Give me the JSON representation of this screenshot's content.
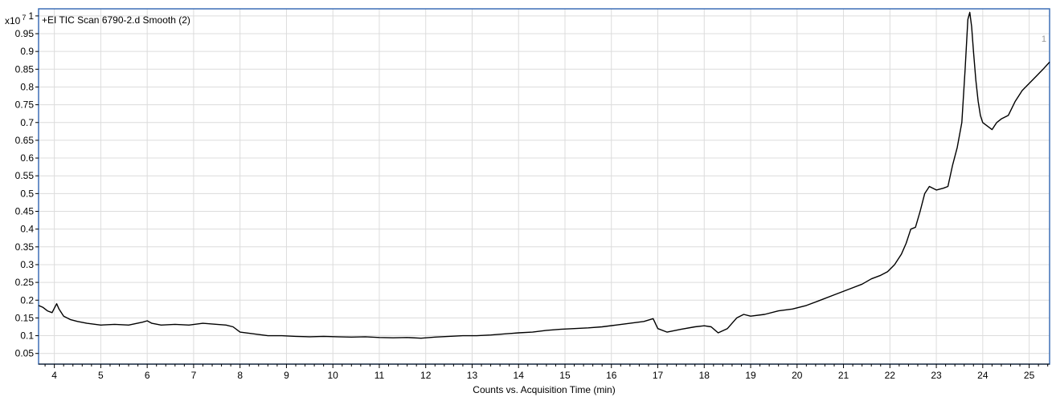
{
  "chart_data": {
    "type": "line",
    "title": "+EI TIC Scan 6790-2.d  Smooth (2)",
    "xlabel": "Counts vs. Acquisition Time (min)",
    "y_multiplier_base": "x10",
    "y_multiplier_exp": "7",
    "panel_number": "1",
    "xlim": [
      3.66,
      25.44
    ],
    "ylim": [
      0.02,
      1.02
    ],
    "x_ticks": [
      4,
      5,
      6,
      7,
      8,
      9,
      10,
      11,
      12,
      13,
      14,
      15,
      16,
      17,
      18,
      19,
      20,
      21,
      22,
      23,
      24,
      25
    ],
    "y_ticks": [
      0.05,
      0.1,
      0.15,
      0.2,
      0.25,
      0.3,
      0.35,
      0.4,
      0.45,
      0.5,
      0.55,
      0.6,
      0.65,
      0.7,
      0.75,
      0.8,
      0.85,
      0.9,
      0.95,
      1
    ],
    "y_tick_labels": [
      "0.05",
      "0.1",
      "0.15",
      "0.2",
      "0.25",
      "0.3",
      "0.35",
      "0.4",
      "0.45",
      "0.5",
      "0.55",
      "0.6",
      "0.65",
      "0.7",
      "0.75",
      "0.8",
      "0.85",
      "0.9",
      "0.95",
      "1"
    ],
    "grid": true,
    "series": [
      {
        "color": "#000000",
        "x": [
          3.66,
          3.75,
          3.85,
          3.95,
          4.05,
          4.1,
          4.2,
          4.35,
          4.5,
          4.7,
          5.0,
          5.3,
          5.6,
          5.9,
          6.0,
          6.1,
          6.3,
          6.6,
          6.9,
          7.2,
          7.5,
          7.7,
          7.85,
          8.0,
          8.3,
          8.6,
          8.9,
          9.2,
          9.5,
          9.8,
          10.1,
          10.4,
          10.7,
          11.0,
          11.3,
          11.6,
          11.9,
          12.2,
          12.5,
          12.8,
          13.1,
          13.4,
          13.7,
          14.0,
          14.3,
          14.6,
          14.9,
          15.2,
          15.5,
          15.8,
          16.1,
          16.4,
          16.7,
          16.9,
          17.0,
          17.2,
          17.5,
          17.8,
          18.0,
          18.15,
          18.3,
          18.5,
          18.7,
          18.85,
          19.0,
          19.3,
          19.6,
          19.9,
          20.2,
          20.5,
          20.8,
          21.1,
          21.4,
          21.6,
          21.8,
          21.95,
          22.1,
          22.25,
          22.35,
          22.45,
          22.55,
          22.65,
          22.75,
          22.85,
          23.0,
          23.15,
          23.25,
          23.35,
          23.45,
          23.55,
          23.62,
          23.68,
          23.72,
          23.76,
          23.8,
          23.85,
          23.9,
          23.95,
          24.0,
          24.1,
          24.2,
          24.3,
          24.4,
          24.55,
          24.7,
          24.85,
          25.0,
          25.15,
          25.3,
          25.44
        ],
        "y": [
          0.185,
          0.18,
          0.17,
          0.165,
          0.19,
          0.175,
          0.155,
          0.145,
          0.14,
          0.135,
          0.13,
          0.132,
          0.13,
          0.138,
          0.142,
          0.135,
          0.13,
          0.132,
          0.13,
          0.135,
          0.132,
          0.13,
          0.125,
          0.11,
          0.105,
          0.1,
          0.1,
          0.098,
          0.097,
          0.098,
          0.097,
          0.096,
          0.097,
          0.095,
          0.094,
          0.095,
          0.093,
          0.096,
          0.098,
          0.1,
          0.1,
          0.102,
          0.105,
          0.108,
          0.11,
          0.115,
          0.118,
          0.12,
          0.122,
          0.125,
          0.13,
          0.135,
          0.14,
          0.148,
          0.12,
          0.11,
          0.118,
          0.125,
          0.128,
          0.125,
          0.108,
          0.12,
          0.15,
          0.16,
          0.155,
          0.16,
          0.17,
          0.175,
          0.185,
          0.2,
          0.215,
          0.23,
          0.245,
          0.26,
          0.27,
          0.28,
          0.3,
          0.33,
          0.36,
          0.4,
          0.405,
          0.45,
          0.5,
          0.52,
          0.51,
          0.515,
          0.52,
          0.58,
          0.63,
          0.7,
          0.85,
          0.99,
          1.01,
          0.97,
          0.9,
          0.82,
          0.76,
          0.72,
          0.7,
          0.69,
          0.68,
          0.7,
          0.71,
          0.72,
          0.76,
          0.79,
          0.81,
          0.83,
          0.85,
          0.87
        ]
      }
    ]
  }
}
